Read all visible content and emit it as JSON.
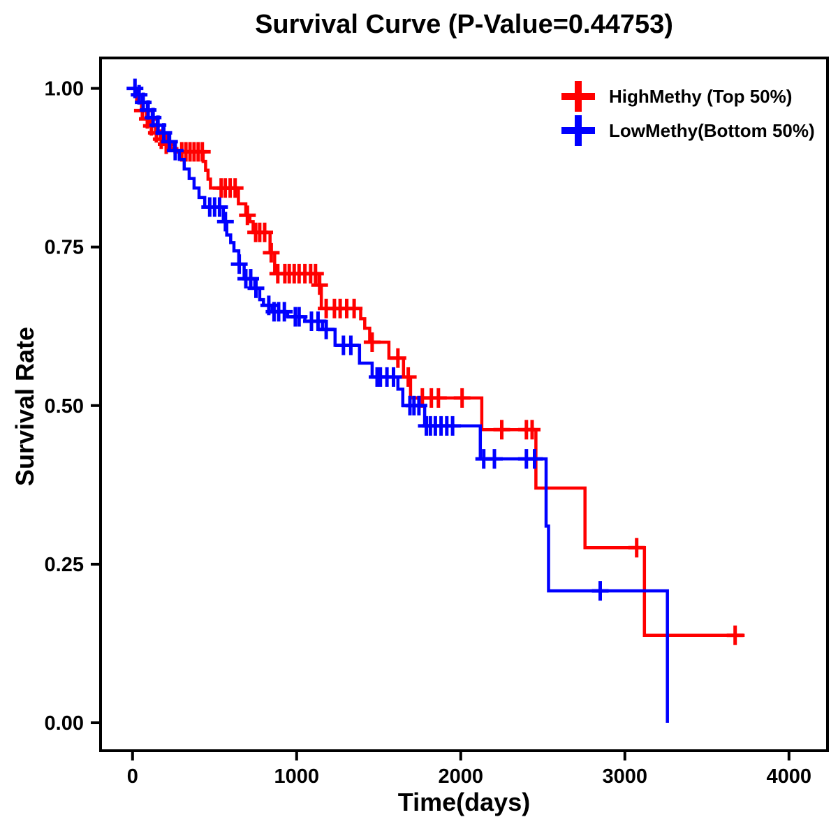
{
  "chart_data": {
    "type": "line",
    "subtype": "kaplan-meier-step-curves",
    "title": "Survival Curve (P-Value=0.44753)",
    "p_value": "0.44753",
    "xlabel": "Time(days)",
    "ylabel": "Survival Rate",
    "x_ticks": {
      "values": [
        0,
        1000,
        2000,
        3000,
        4000
      ],
      "labels": [
        "0",
        "1000",
        "2000",
        "3000",
        "4000"
      ]
    },
    "y_ticks": {
      "values": [
        0,
        0.25,
        0.5,
        0.75,
        1.0
      ],
      "labels": [
        "0.00",
        "0.25",
        "0.50",
        "0.75",
        "1.00"
      ]
    },
    "xlim": [
      -195,
      4235
    ],
    "ylim": [
      -0.044,
      1.048
    ],
    "grid": false,
    "frame_color": "#000000",
    "legend_position": "top-right",
    "censor_marker": "+",
    "series": [
      {
        "name": "HighMethy (Top 50%)",
        "color": "#FF0000",
        "end_time": 3730,
        "steps": [
          [
            0,
            0.99
          ],
          [
            25,
            0.978
          ],
          [
            55,
            0.965
          ],
          [
            85,
            0.952
          ],
          [
            110,
            0.941
          ],
          [
            140,
            0.93
          ],
          [
            170,
            0.92
          ],
          [
            200,
            0.912
          ],
          [
            235,
            0.905
          ],
          [
            270,
            0.9
          ],
          [
            430,
            0.885
          ],
          [
            445,
            0.871
          ],
          [
            460,
            0.857
          ],
          [
            475,
            0.843
          ],
          [
            645,
            0.818
          ],
          [
            690,
            0.8
          ],
          [
            715,
            0.79
          ],
          [
            735,
            0.773
          ],
          [
            838,
            0.741
          ],
          [
            866,
            0.708
          ],
          [
            1136,
            0.69
          ],
          [
            1150,
            0.653
          ],
          [
            1390,
            0.637
          ],
          [
            1415,
            0.622
          ],
          [
            1445,
            0.6
          ],
          [
            1562,
            0.575
          ],
          [
            1651,
            0.545
          ],
          [
            1694,
            0.512
          ],
          [
            2128,
            0.462
          ],
          [
            2458,
            0.37
          ],
          [
            2757,
            0.276
          ],
          [
            3119,
            0.138
          ]
        ],
        "censor_times": [
          60,
          90,
          115,
          145,
          175,
          205,
          300,
          325,
          350,
          375,
          400,
          425,
          540,
          565,
          595,
          625,
          700,
          750,
          775,
          805,
          845,
          885,
          928,
          955,
          985,
          1015,
          1050,
          1085,
          1115,
          1140,
          1180,
          1230,
          1265,
          1305,
          1350,
          1460,
          1617,
          1680,
          1766,
          1821,
          1864,
          2008,
          2250,
          2400,
          2435,
          3072,
          3672
        ]
      },
      {
        "name": "LowMethy(Bottom 50%)",
        "color": "#0000FF",
        "end_time": 3259,
        "steps": [
          [
            0,
            1.0
          ],
          [
            30,
            0.99
          ],
          [
            60,
            0.978
          ],
          [
            90,
            0.966
          ],
          [
            120,
            0.954
          ],
          [
            150,
            0.942
          ],
          [
            185,
            0.93
          ],
          [
            220,
            0.916
          ],
          [
            255,
            0.902
          ],
          [
            285,
            0.888
          ],
          [
            315,
            0.873
          ],
          [
            345,
            0.858
          ],
          [
            375,
            0.843
          ],
          [
            405,
            0.828
          ],
          [
            440,
            0.813
          ],
          [
            553,
            0.79
          ],
          [
            574,
            0.769
          ],
          [
            598,
            0.757
          ],
          [
            618,
            0.744
          ],
          [
            647,
            0.723
          ],
          [
            680,
            0.7
          ],
          [
            745,
            0.685
          ],
          [
            775,
            0.667
          ],
          [
            798,
            0.658
          ],
          [
            851,
            0.648
          ],
          [
            945,
            0.64
          ],
          [
            1050,
            0.633
          ],
          [
            1157,
            0.62
          ],
          [
            1234,
            0.595
          ],
          [
            1383,
            0.567
          ],
          [
            1460,
            0.545
          ],
          [
            1617,
            0.526
          ],
          [
            1647,
            0.5
          ],
          [
            1780,
            0.468
          ],
          [
            2119,
            0.416
          ],
          [
            2520,
            0.31
          ],
          [
            2535,
            0.208
          ],
          [
            3259,
            0.0
          ]
        ],
        "censor_times": [
          15,
          40,
          65,
          95,
          125,
          155,
          190,
          225,
          260,
          470,
          500,
          530,
          566,
          650,
          690,
          720,
          752,
          830,
          862,
          890,
          925,
          992,
          1015,
          1090,
          1130,
          1180,
          1285,
          1330,
          1490,
          1510,
          1550,
          1590,
          1690,
          1715,
          1745,
          1790,
          1815,
          1845,
          1880,
          1915,
          1950,
          2140,
          2205,
          2400,
          2450,
          2850
        ]
      }
    ]
  }
}
